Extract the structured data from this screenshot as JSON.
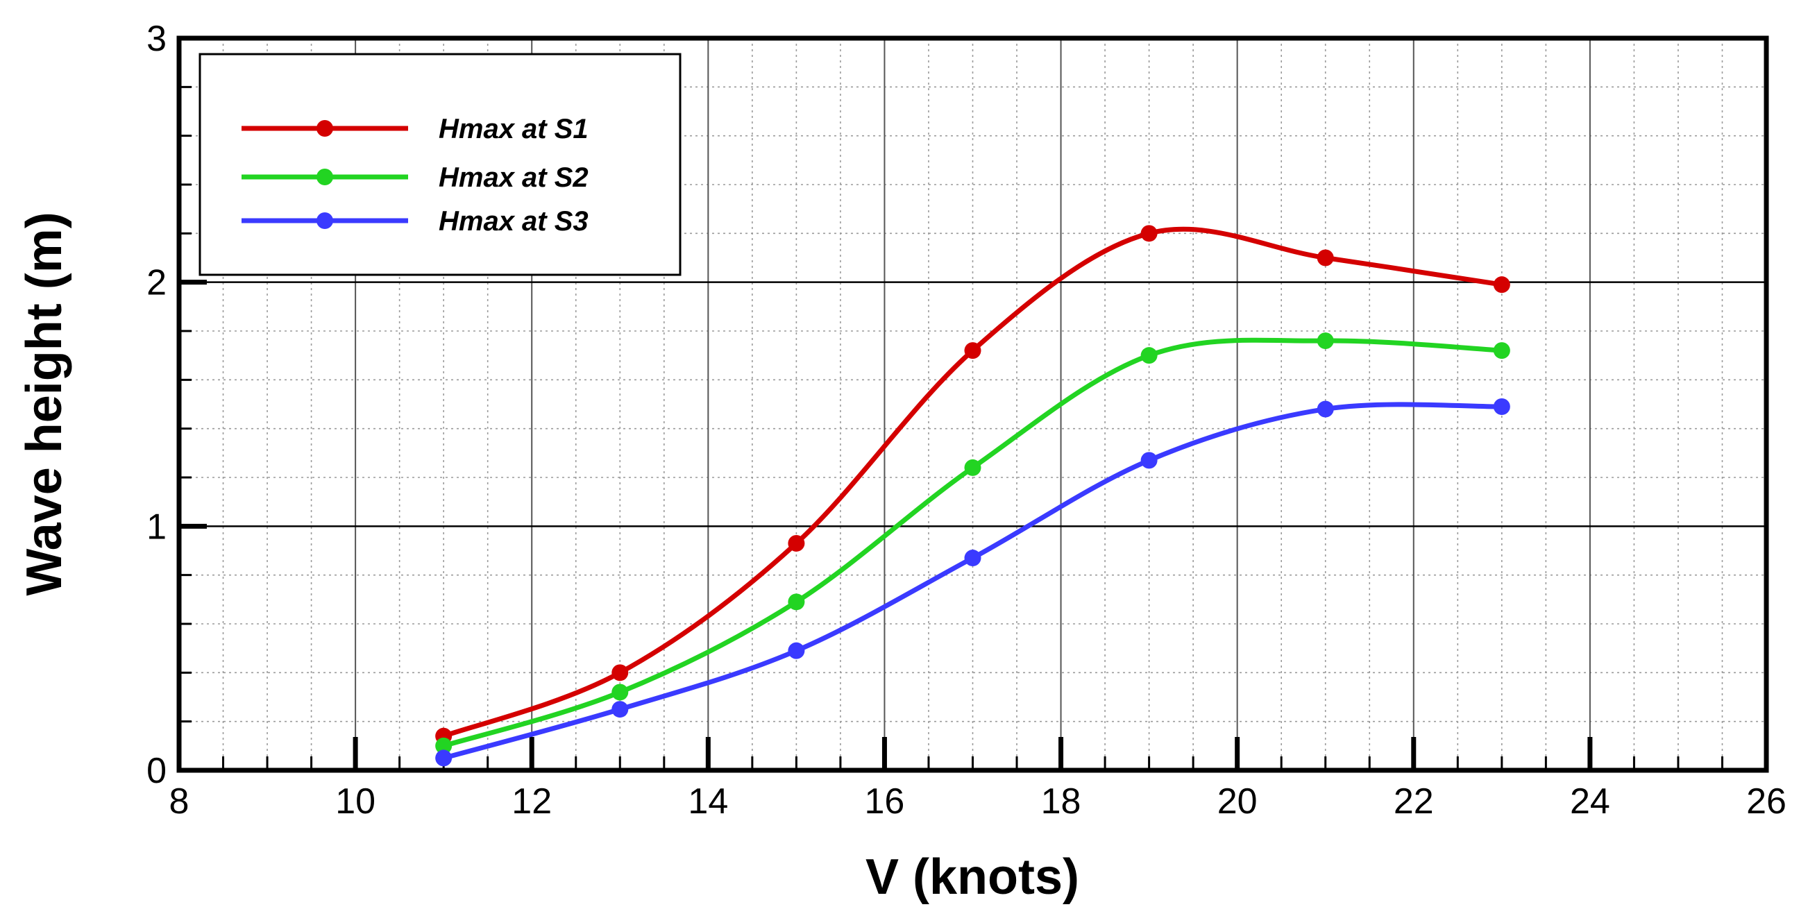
{
  "chart_data": {
    "type": "line",
    "title": "",
    "xlabel": "V (knots)",
    "ylabel": "Wave height (m)",
    "xlim": [
      8,
      26
    ],
    "ylim": [
      0,
      3
    ],
    "x_ticks": [
      "8",
      "10",
      "12",
      "14",
      "16",
      "18",
      "20",
      "22",
      "24",
      "26"
    ],
    "y_ticks": [
      "0",
      "1",
      "2",
      "3"
    ],
    "grid": true,
    "legend_position": "top-left",
    "x": [
      11,
      13,
      15,
      17,
      19,
      21,
      23
    ],
    "series": [
      {
        "name": "Hmax at S1",
        "color": "#d40000",
        "values": [
          0.14,
          0.4,
          0.93,
          1.72,
          2.2,
          2.1,
          1.99
        ]
      },
      {
        "name": "Hmax at S2",
        "color": "#22d422",
        "values": [
          0.1,
          0.32,
          0.69,
          1.24,
          1.7,
          1.76,
          1.72
        ]
      },
      {
        "name": "Hmax at S3",
        "color": "#3a3aff",
        "values": [
          0.05,
          0.25,
          0.49,
          0.87,
          1.27,
          1.48,
          1.49
        ]
      }
    ]
  }
}
